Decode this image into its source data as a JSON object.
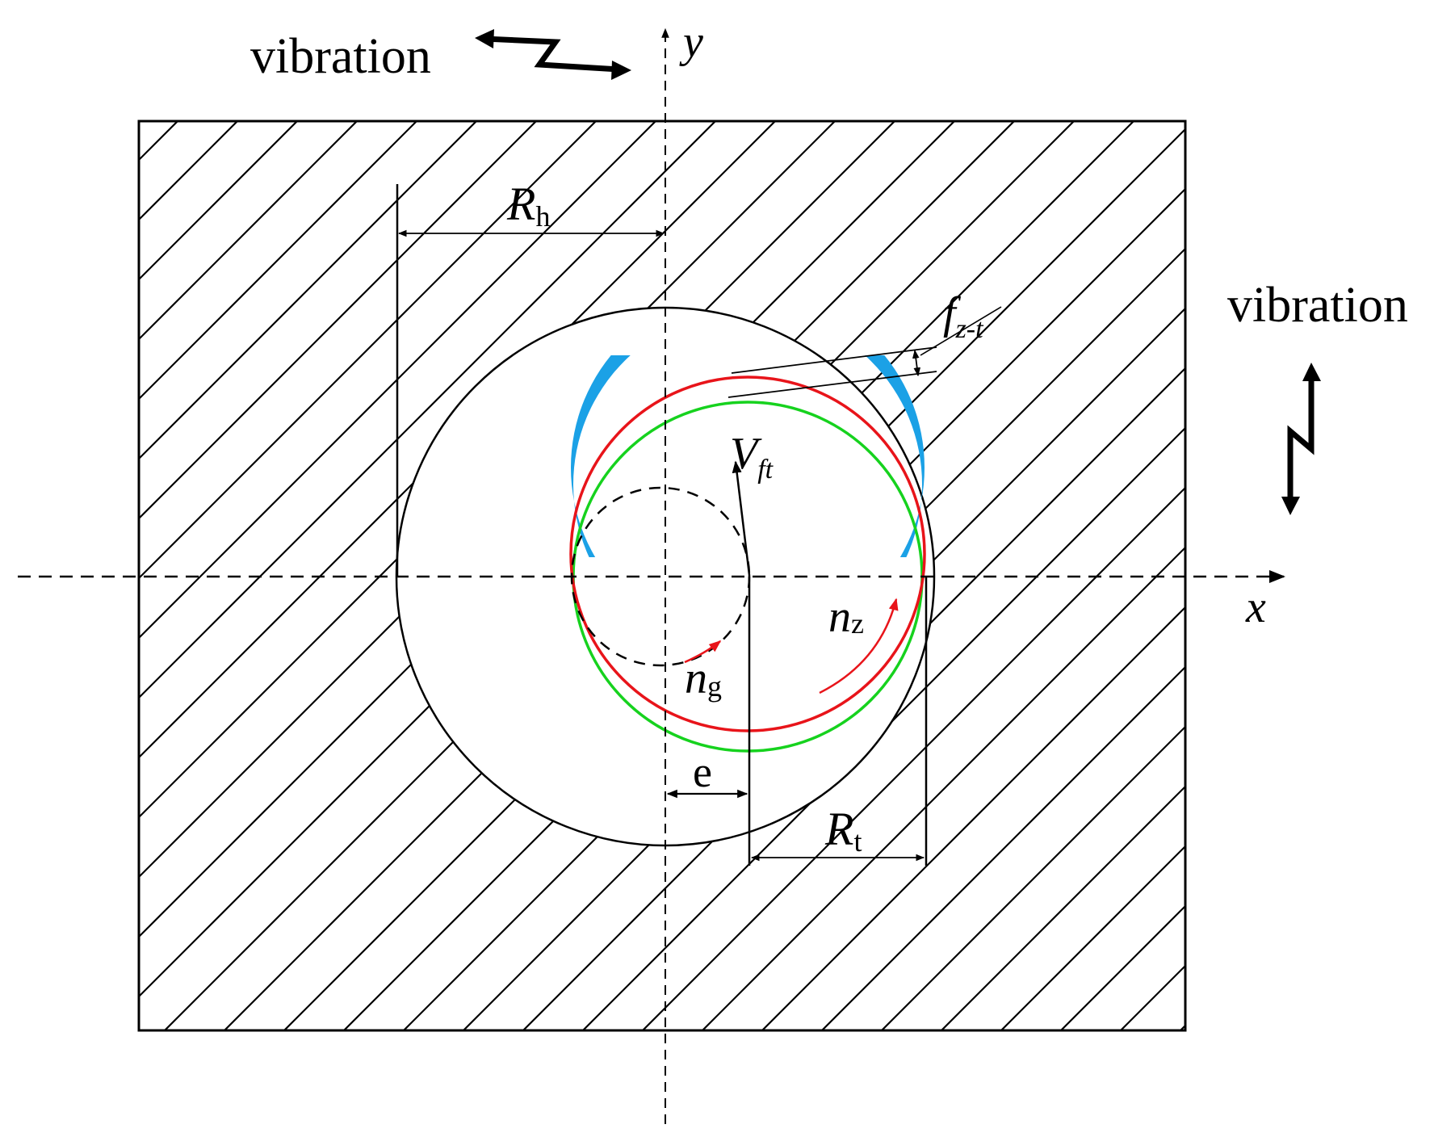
{
  "labels": {
    "vibration_x": "vibration",
    "vibration_y": "vibration",
    "axis_x": "x",
    "axis_y": "y",
    "hole_radius": {
      "main": "R",
      "sub": "h"
    },
    "tool_radius": {
      "main": "R",
      "sub": "t"
    },
    "eccentricity": "e",
    "feed_velocity": {
      "main": "V",
      "sub": "ft"
    },
    "feed_per_tooth": {
      "main": "f",
      "sub": "z-t"
    },
    "spindle_speed": {
      "main": "n",
      "sub": "z"
    },
    "revolution_speed": {
      "main": "n",
      "sub": "g"
    }
  },
  "colors": {
    "tool_current": "#e8141a",
    "tool_previous": "#16d21e",
    "uncut_chip": "#1ba1e6",
    "rotation_arrow": "#e8141a",
    "line": "#000000"
  },
  "icons": {
    "vibration_x": "zigzag-double-arrow-horizontal",
    "vibration_y": "zigzag-double-arrow-vertical"
  }
}
